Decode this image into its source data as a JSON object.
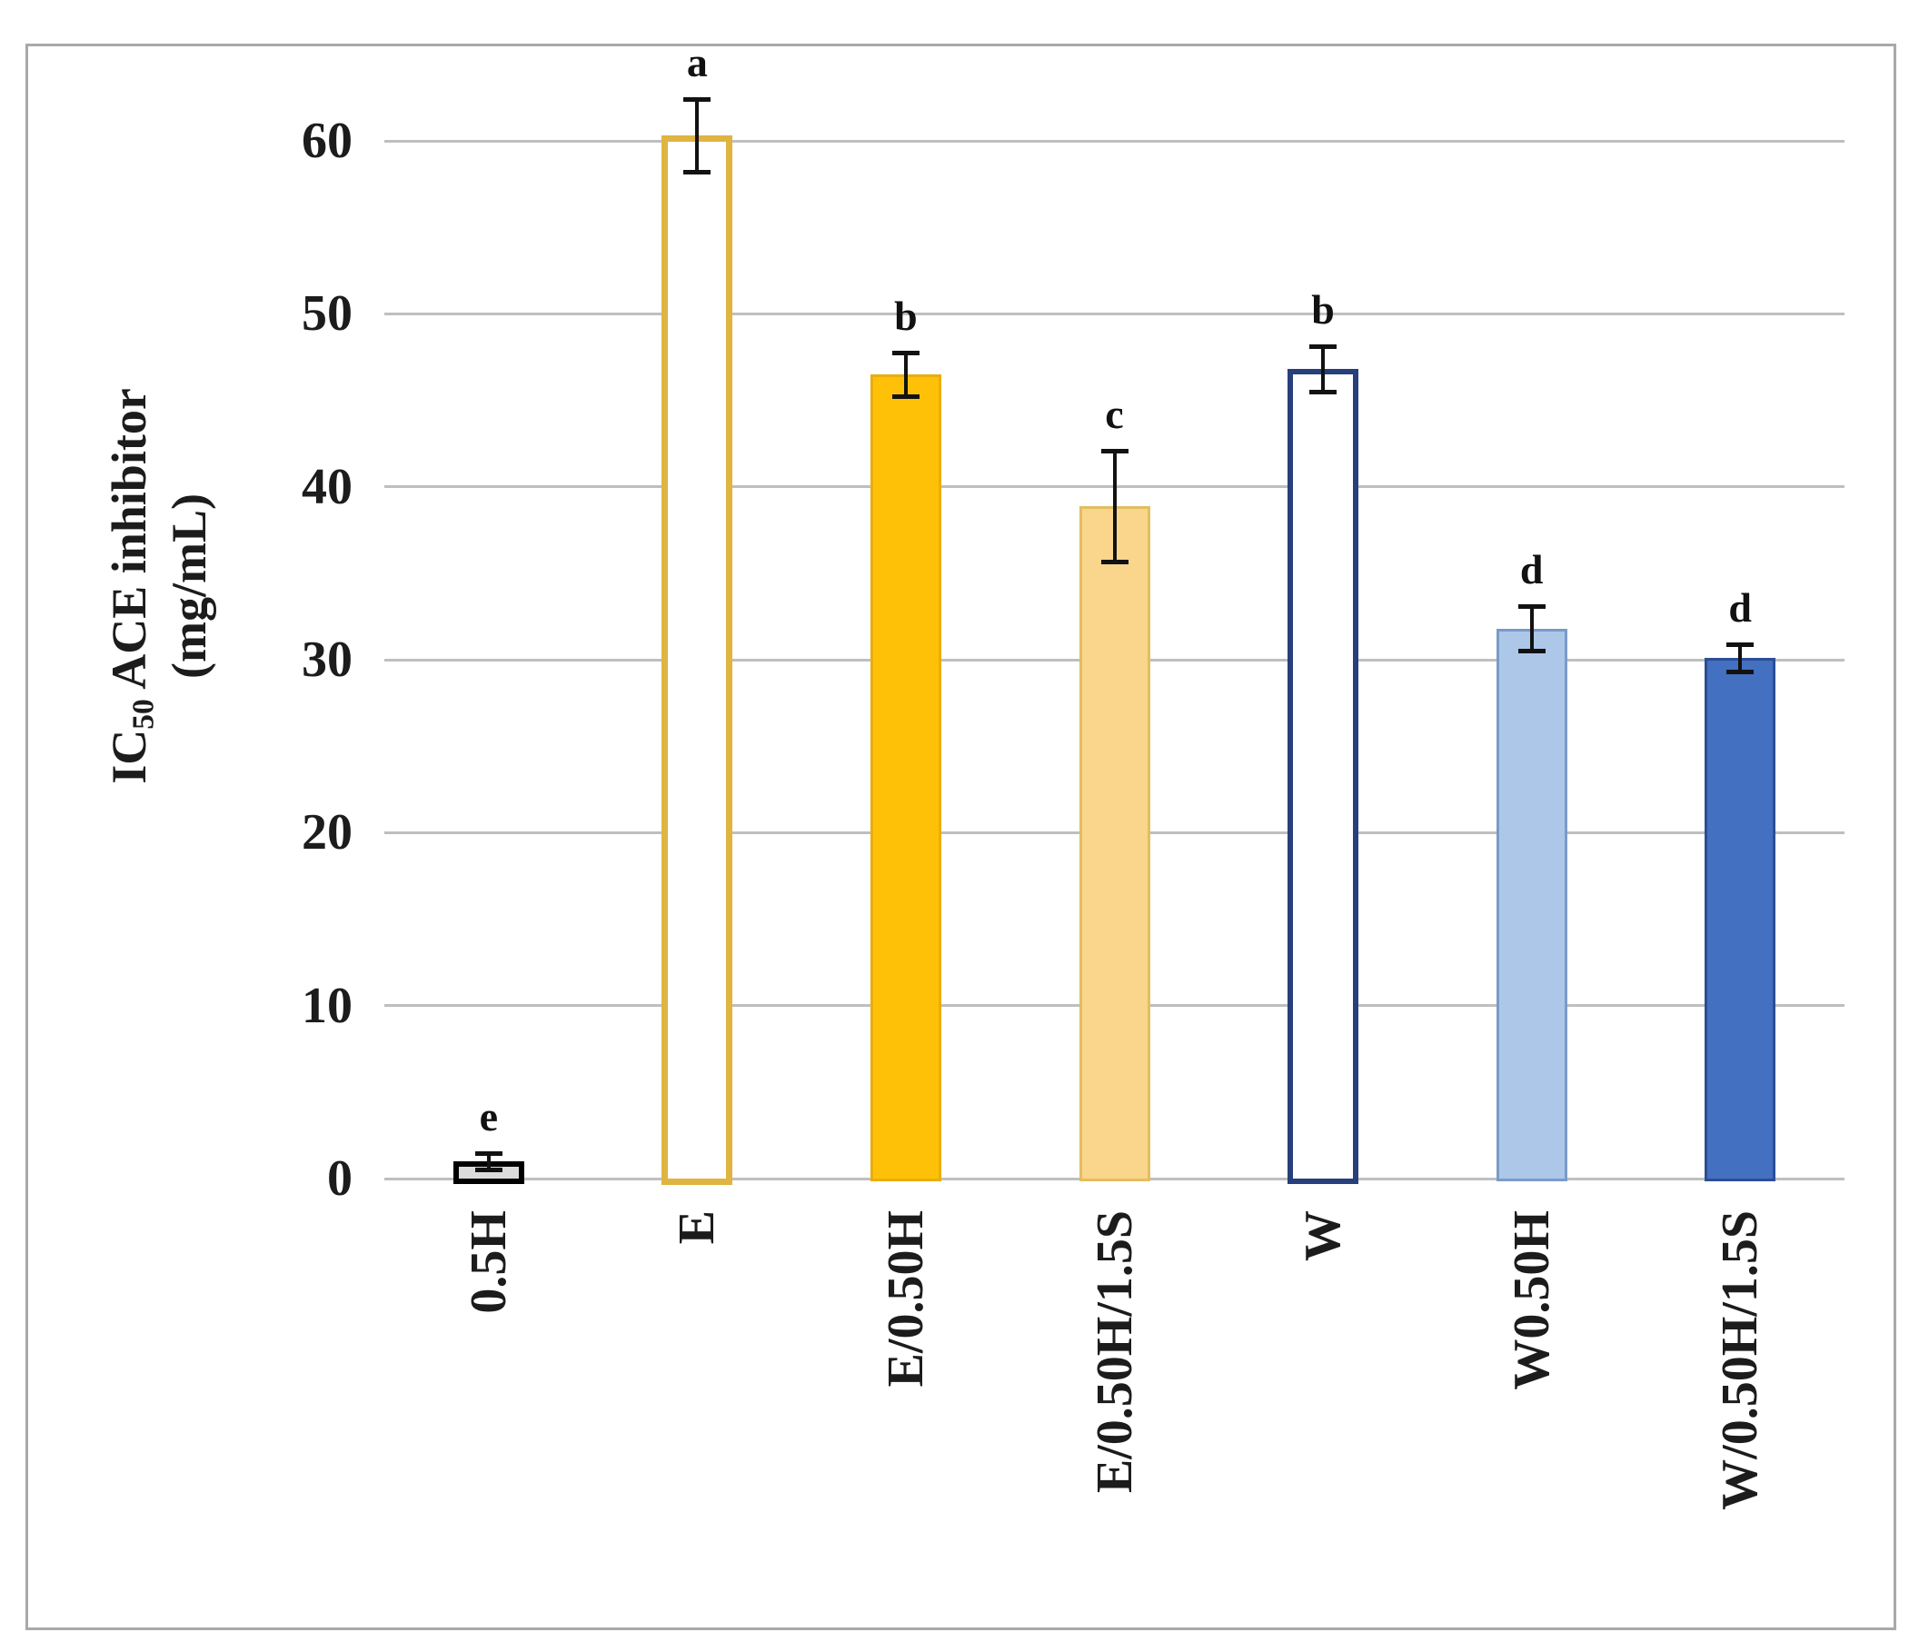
{
  "figure": {
    "border_color": "#A9A9A9",
    "background": "#FFFFFF"
  },
  "chart_data": {
    "type": "bar",
    "title": "",
    "ylabel": "IC50 ACE inhibitor (mg/mL)",
    "ylabel_parts": {
      "prefix": "IC",
      "subscript": "50",
      "suffix": " ACE inhibitor",
      "line2": "(mg/mL)"
    },
    "categories": [
      "0.5H",
      "E",
      "E/0.50H",
      "E/0.50H/1.5S",
      "W",
      "W0.50H",
      "W/0.50H/1.5S"
    ],
    "values": [
      1.0,
      60.3,
      46.5,
      38.9,
      46.8,
      31.8,
      30.1
    ],
    "errors": [
      0.45,
      2.1,
      1.25,
      3.2,
      1.3,
      1.3,
      0.8
    ],
    "significance_letters": [
      "e",
      "a",
      "b",
      "c",
      "b",
      "d",
      "d"
    ],
    "yticks": [
      0,
      10,
      20,
      30,
      40,
      50,
      60
    ],
    "ylim": [
      0,
      65
    ],
    "grid": true,
    "legend": "none",
    "gridline_color": "#BFBFBF",
    "error_bar_color": "#121212",
    "bar_styles": [
      {
        "fill": "#DCDCDC",
        "border": "#000000",
        "border_width": 6
      },
      {
        "fill": "#FFFFFF",
        "border": "#DFB441",
        "border_width": 7
      },
      {
        "fill": "#FFC107",
        "border": "#E9AD0C",
        "border_width": 3
      },
      {
        "fill": "#FAD68C",
        "border": "#E3BE60",
        "border_width": 3
      },
      {
        "fill": "#FFFFFF",
        "border": "#27407B",
        "border_width": 6
      },
      {
        "fill": "#ADC7E8",
        "border": "#7A9BC8",
        "border_width": 3
      },
      {
        "fill": "#4470C1",
        "border": "#2B4E96",
        "border_width": 3
      }
    ]
  }
}
